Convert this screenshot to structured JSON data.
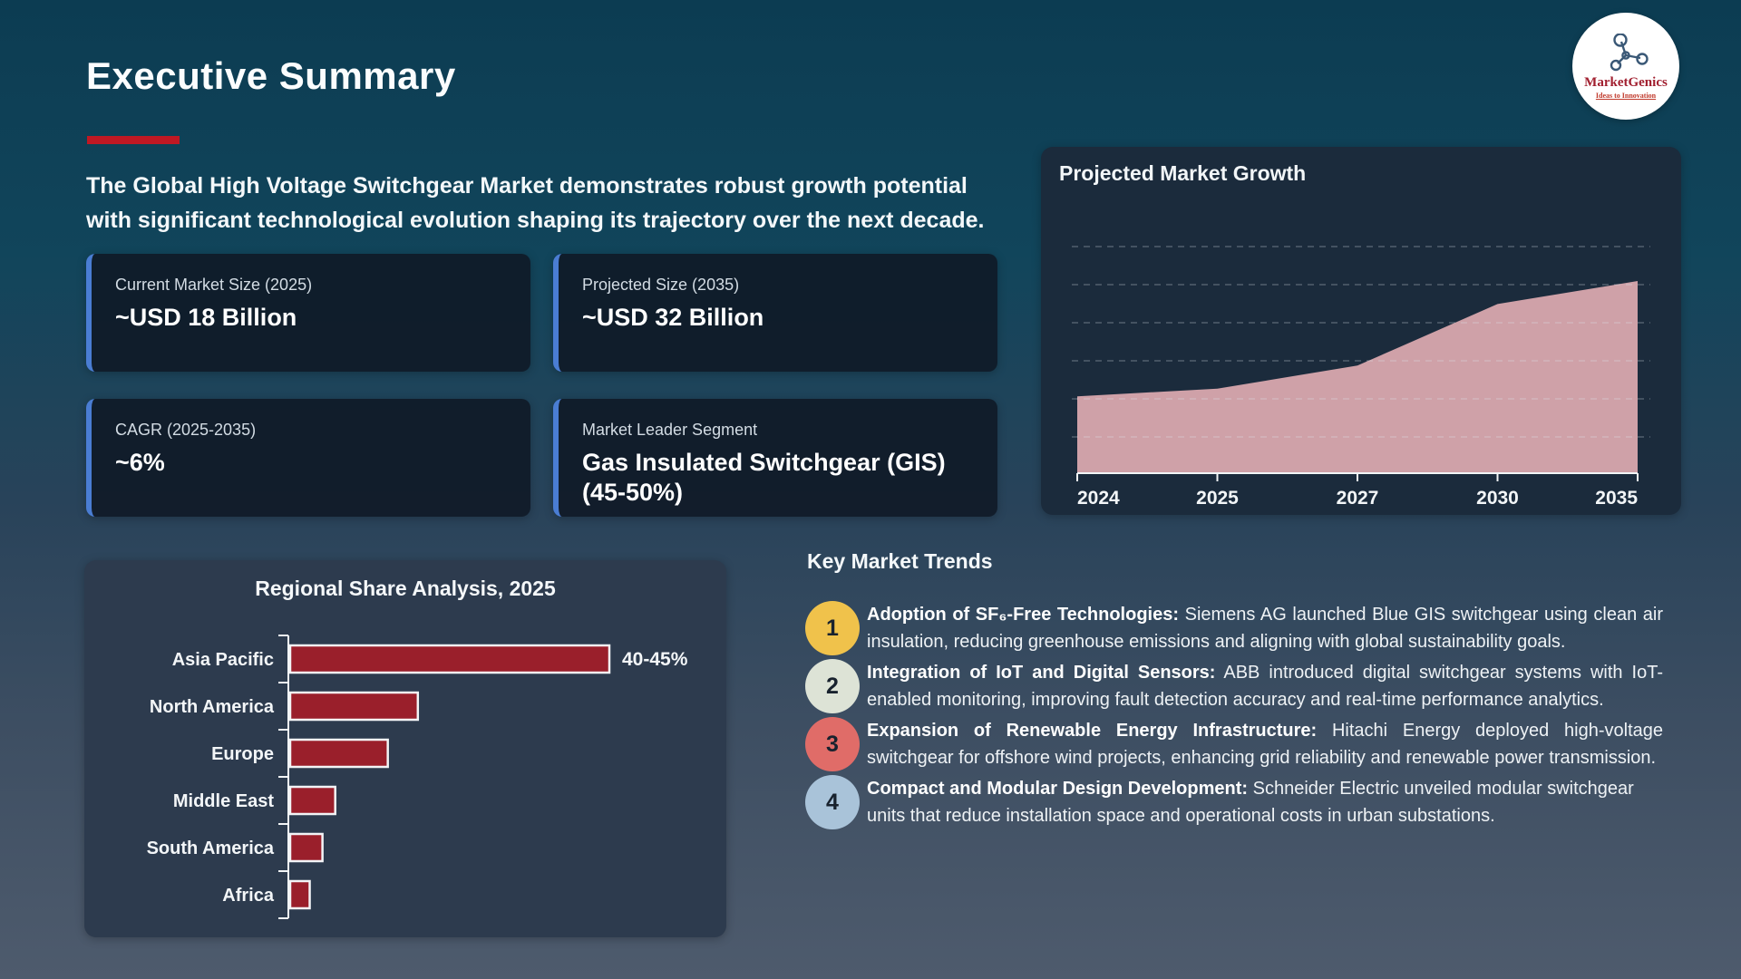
{
  "page": {
    "title": "Executive Summary",
    "intro_line1": "The Global High Voltage Switchgear Market demonstrates robust growth potential",
    "intro_line2": "with significant technological evolution shaping its trajectory over the next decade."
  },
  "logo": {
    "name": "MarketGenics",
    "tagline": "Ideas to Innovation"
  },
  "stats": [
    {
      "label": "Current Market Size (2025)",
      "value": "~USD 18 Billion"
    },
    {
      "label": "Projected Size (2035)",
      "value": "~USD 32 Billion"
    },
    {
      "label": "CAGR (2025-2035)",
      "value": "~6%"
    },
    {
      "label": "Market Leader Segment",
      "value": "Gas Insulated Switchgear (GIS) (45-50%)"
    }
  ],
  "chart_data": [
    {
      "type": "area",
      "title": "Projected Market Growth",
      "x": [
        "2024",
        "2025",
        "2027",
        "2030",
        "2035"
      ],
      "values": [
        17,
        18,
        21,
        29,
        32
      ],
      "unit": "USD Billion (approx.)",
      "ylim": [
        7,
        32
      ],
      "grid": "dashed-horizontal",
      "legend": "none",
      "area_color": "#cfa1a8"
    },
    {
      "type": "bar",
      "title": "Regional Share Analysis, 2025",
      "orientation": "horizontal",
      "categories": [
        "Asia Pacific",
        "North America",
        "Europe",
        "Middle East",
        "South America",
        "Africa"
      ],
      "values": [
        42.5,
        17,
        13,
        6,
        4.3,
        2.6
      ],
      "value_labels": [
        "40-45%",
        "",
        "",
        "",
        "",
        ""
      ],
      "xlim": [
        0,
        45
      ],
      "grid": "off",
      "bar_color": "#9a1f2b"
    }
  ],
  "trends": {
    "heading": "Key Market Trends",
    "items": [
      {
        "number": "1",
        "circle_color": "#f0c24b",
        "title": "Adoption of SF₆-Free Technologies:",
        "body": " Siemens AG launched Blue GIS switchgear using clean air insulation, reducing greenhouse emissions and aligning with global sustainability goals."
      },
      {
        "number": "2",
        "circle_color": "#dde3d6",
        "title": "Integration of IoT and Digital Sensors:",
        "body": " ABB introduced digital switchgear systems with IoT-enabled monitoring, improving fault detection accuracy and real-time performance analytics."
      },
      {
        "number": "3",
        "circle_color": "#e06c68",
        "title": "Expansion of Renewable Energy Infrastructure:",
        "body": " Hitachi Energy deployed high-voltage switchgear for offshore wind projects, enhancing grid reliability and renewable power transmission."
      },
      {
        "number": "4",
        "circle_color": "#a9c3d9",
        "title": "Compact and Modular Design Development:",
        "body": " Schneider Electric unveiled modular switchgear units that reduce installation space and operational costs in urban substations."
      }
    ]
  },
  "colors": {
    "accent_red": "#c01823",
    "card_accent_blue": "#4a7dd3",
    "panel_dark": "#1b2b3c",
    "panel_slate": "#2d3b4e"
  }
}
